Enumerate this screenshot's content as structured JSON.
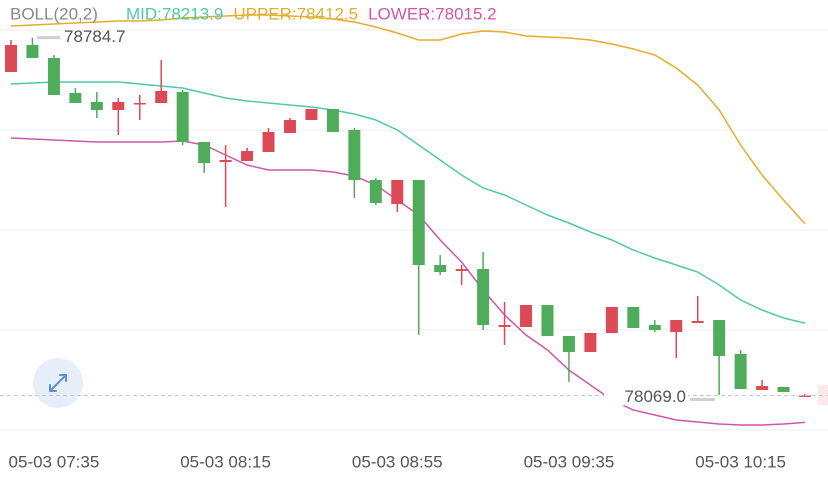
{
  "chart_data": {
    "type": "candlestick",
    "title": "BOLL(20,2)",
    "categories": [
      null,
      null,
      "05-03 07:35",
      null,
      null,
      null,
      null,
      null,
      null,
      null,
      "05-03 08:15",
      null,
      null,
      null,
      null,
      null,
      null,
      null,
      "05-03 08:55",
      null,
      null,
      null,
      null,
      null,
      null,
      null,
      "05-03 09:35",
      null,
      null,
      null,
      null,
      null,
      null,
      null,
      "05-03 10:15",
      null,
      null,
      null
    ],
    "open": [
      78716,
      78770,
      78744,
      78674,
      78656,
      78640,
      78652,
      78654,
      78676,
      78576,
      78536,
      78538,
      78556,
      78594,
      78620,
      78642,
      78600,
      78500,
      78452,
      78500,
      78330,
      78318,
      78322,
      78206,
      78206,
      78250,
      78188,
      78156,
      78194,
      78246,
      78210,
      78196,
      78214,
      78220,
      78152,
      78080,
      78086,
      78068
    ],
    "high": [
      78780,
      78784.7,
      78750,
      78684,
      78676,
      78664,
      78670,
      78740,
      78680,
      78576,
      78570,
      78564,
      78604,
      78624,
      78642,
      78642,
      78604,
      78504,
      78500,
      78500,
      78350,
      78330,
      78356,
      78256,
      78250,
      78250,
      78188,
      78194,
      78246,
      78246,
      78220,
      78220,
      78268,
      78220,
      78160,
      78100,
      78086,
      78072
    ],
    "low": [
      78716,
      78744,
      78670,
      78654,
      78624,
      78590,
      78620,
      78654,
      78570,
      78514,
      78446,
      78538,
      78556,
      78594,
      78620,
      78596,
      78464,
      78450,
      78436,
      78190,
      78310,
      78290,
      78200,
      78170,
      78206,
      78188,
      78096,
      78156,
      78194,
      78204,
      78196,
      78144,
      78214,
      78070,
      78082,
      78080,
      78076,
      78068
    ],
    "close": [
      78770,
      78744,
      78670,
      78654,
      78640,
      78656,
      78654,
      78678,
      78576,
      78534,
      78540,
      78558,
      78596,
      78620,
      78642,
      78596,
      78500,
      78454,
      78500,
      78330,
      78316,
      78322,
      78210,
      78210,
      78250,
      78188,
      78156,
      78194,
      78246,
      78204,
      78200,
      78220,
      78218,
      78148,
      78082,
      78088,
      78076,
      78069.0
    ],
    "up_color": "#dc4b55",
    "down_color": "#4fac5b",
    "series": [
      {
        "name": "MID:78213.9",
        "color": "#4fcaa6",
        "values": [
          78692,
          78694,
          78696,
          78696,
          78696,
          78696,
          78692,
          78688,
          78684,
          78674,
          78664,
          78658,
          78654,
          78650,
          78646,
          78640,
          78632,
          78620,
          78600,
          78570,
          78540,
          78510,
          78484,
          78470,
          78450,
          78430,
          78414,
          78396,
          78380,
          78360,
          78344,
          78330,
          78316,
          78290,
          78260,
          78240,
          78224,
          78213.9
        ]
      },
      {
        "name": "UPPER:78412.5",
        "color": "#e2ae2c",
        "values": [
          78808,
          78810,
          78812,
          78814,
          78816,
          78818,
          78818,
          78820,
          78824,
          78826,
          78828,
          78830,
          78830,
          78828,
          78826,
          78822,
          78816,
          78806,
          78794,
          78780,
          78780,
          78792,
          78798,
          78796,
          78788,
          78786,
          78784,
          78780,
          78772,
          78762,
          78750,
          78724,
          78690,
          78640,
          78570,
          78510,
          78460,
          78412.5
        ]
      },
      {
        "name": "LOWER:78015.2",
        "color": "#d156a9",
        "values": [
          78584,
          78582,
          78580,
          78578,
          78576,
          78576,
          78576,
          78576,
          78578,
          78570,
          78550,
          78530,
          78520,
          78520,
          78520,
          78516,
          78508,
          78490,
          78460,
          78430,
          78380,
          78336,
          78280,
          78230,
          78190,
          78160,
          78120,
          78090,
          78060,
          78040,
          78030,
          78020,
          78016,
          78012,
          78010,
          78010,
          78012,
          78015.2
        ]
      }
    ],
    "ylim": [
      77970,
      78860
    ],
    "annotations": [
      {
        "value": 78784.7,
        "label": "78784.7"
      },
      {
        "value": 78069.0,
        "label": "78069.0"
      }
    ]
  }
}
